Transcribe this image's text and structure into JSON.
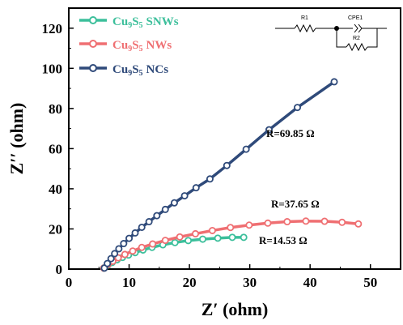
{
  "chart_data": {
    "type": "line",
    "xlabel": "Z′ (ohm)",
    "ylabel": "Z′′ (ohm)",
    "xlim": [
      0,
      55
    ],
    "ylim": [
      0,
      130
    ],
    "xticks": [
      "0",
      "10",
      "20",
      "30",
      "40",
      "50"
    ],
    "yticks": [
      "0",
      "20",
      "40",
      "60",
      "80",
      "100",
      "120"
    ],
    "grid": false,
    "legend_position": "top-left",
    "series": [
      {
        "name_base": "Cu",
        "name_sub1": "9",
        "name_mid": "S",
        "name_sub2": "5",
        "name_tail": "SNWs",
        "color": "#3cbf9b",
        "x": [
          5.8,
          6.5,
          7.2,
          8.0,
          8.9,
          9.9,
          11.0,
          12.3,
          13.8,
          15.6,
          17.6,
          19.8,
          22.2,
          24.7,
          27.1,
          29.0
        ],
        "y": [
          0.5,
          2.0,
          3.3,
          4.6,
          5.8,
          7.0,
          8.2,
          9.5,
          10.8,
          12.1,
          13.2,
          14.2,
          14.9,
          15.4,
          15.8,
          15.8
        ]
      },
      {
        "name_base": "Cu",
        "name_sub1": "9",
        "name_mid": "S",
        "name_sub2": "5",
        "name_tail": "NWs",
        "color": "#ef6f72",
        "x": [
          5.8,
          6.5,
          7.3,
          8.2,
          9.3,
          10.6,
          12.1,
          13.9,
          16.0,
          18.4,
          21.0,
          23.8,
          26.8,
          29.9,
          33.0,
          36.2,
          39.3,
          42.4,
          45.3,
          48.0
        ],
        "y": [
          0.5,
          2.3,
          3.9,
          5.6,
          7.3,
          9.0,
          10.8,
          12.5,
          14.3,
          16.0,
          17.6,
          19.2,
          20.7,
          21.9,
          22.9,
          23.6,
          23.9,
          23.8,
          23.3,
          22.5
        ]
      },
      {
        "name_base": "Cu",
        "name_sub1": "9",
        "name_mid": "S",
        "name_sub2": "5",
        "name_tail": "NCs",
        "color": "#2f4a7a",
        "x": [
          5.9,
          6.4,
          7.0,
          7.6,
          8.3,
          9.1,
          10.0,
          11.0,
          12.1,
          13.3,
          14.6,
          16.0,
          17.5,
          19.2,
          21.1,
          23.4,
          26.2,
          29.4,
          33.2,
          37.9,
          44.0
        ],
        "y": [
          0.5,
          2.8,
          5.2,
          7.7,
          10.1,
          12.7,
          15.3,
          18.0,
          20.8,
          23.6,
          26.6,
          29.7,
          33.0,
          36.5,
          40.5,
          44.9,
          51.6,
          59.7,
          69.4,
          80.5,
          93.3
        ]
      }
    ],
    "annotations": [
      "R=69.85 Ω",
      "R=37.65 Ω",
      "R=14.53 Ω"
    ],
    "circuit": {
      "r1": "R1",
      "cpe": "CPE1",
      "r2": "R2"
    }
  }
}
